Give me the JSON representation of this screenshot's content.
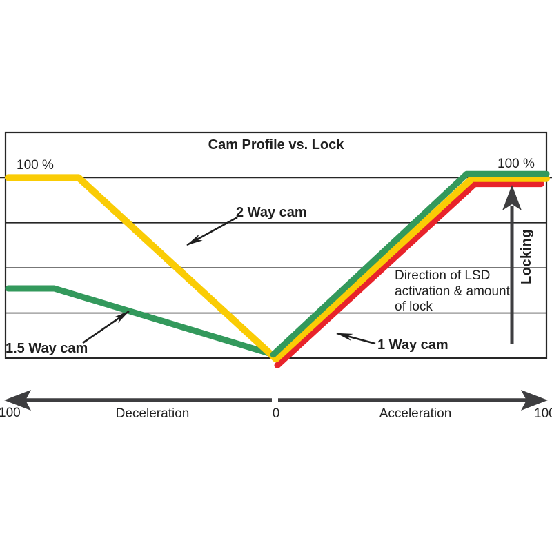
{
  "figure": {
    "title": "Cam Profile vs. Lock",
    "y_left_top_label": "100 %",
    "y_right_top_label": "100 %",
    "locking_axis_label": "Locking",
    "direction_note": "Direction of LSD\nactivation & amount\nof lock",
    "annotations": {
      "two_way": "2 Way cam",
      "one_five_way": "1.5 Way cam",
      "one_way": "1 Way cam"
    },
    "x_axis": {
      "left_end_tick": "100",
      "decel_label": "Deceleration",
      "center_tick": "0",
      "accel_label": "Acceleration",
      "right_end_tick": "100"
    }
  },
  "colors": {
    "two_way_yellow": "#FACC05",
    "one_five_way_green": "#33995C",
    "one_way_red": "#E8232B",
    "axis_arrow_gray": "#3E3E40",
    "ink_black": "#1F1F1F"
  },
  "chart_data": {
    "type": "line",
    "title": "Cam Profile vs. Lock",
    "x_axis": {
      "description": "torque direction: -100 = full deceleration, 0 = neutral, +100 = full acceleration",
      "range": [
        -100,
        100
      ],
      "left_label": "Deceleration",
      "right_label": "Acceleration",
      "end_tick_labels": [
        "100",
        "0",
        "100"
      ]
    },
    "y_axis": {
      "description": "amount of LSD lock in percent",
      "label": "Locking",
      "range": [
        0,
        125
      ],
      "gridline_step": 25,
      "top_value_label": "100 %"
    },
    "grid": true,
    "legend": "inline-callouts",
    "series": [
      {
        "id": "one_five_way",
        "name": "1.5 Way cam",
        "color": "#33995C",
        "segments": [
          [
            [
              -99,
              38.6
            ],
            [
              -82,
              38.6
            ],
            [
              -1,
              2
            ]
          ],
          [
            [
              -1,
              2
            ],
            [
              70.5,
              102
            ],
            [
              100,
              102
            ]
          ]
        ]
      },
      {
        "id": "one_way",
        "name": "1 Way cam",
        "color": "#E8232B",
        "segments": [
          [
            [
              0.5,
              -4
            ],
            [
              73.5,
              96.5
            ],
            [
              98,
              96.5
            ]
          ]
        ]
      },
      {
        "id": "two_way",
        "name": "2 Way cam",
        "color": "#FACC05",
        "segments": [
          [
            [
              -99,
              100
            ],
            [
              -73,
              100
            ],
            [
              0,
              -0.5
            ],
            [
              72.5,
              99.5
            ],
            [
              100,
              99.5
            ]
          ]
        ]
      }
    ]
  }
}
